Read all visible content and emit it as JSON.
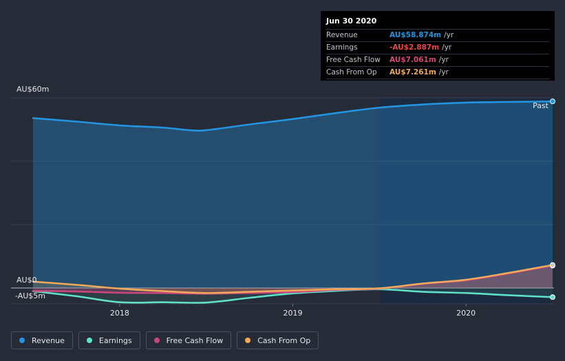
{
  "tooltip": {
    "date": "Jun 30 2020",
    "rows": [
      {
        "label": "Revenue",
        "value": "AU$58.874m",
        "unit": "/yr",
        "color": "#2394df"
      },
      {
        "label": "Earnings",
        "value": "-AU$2.887m",
        "unit": "/yr",
        "color": "#e64848"
      },
      {
        "label": "Free Cash Flow",
        "value": "AU$7.061m",
        "unit": "/yr",
        "color": "#d6477d"
      },
      {
        "label": "Cash From Op",
        "value": "AU$7.261m",
        "unit": "/yr",
        "color": "#f0a95b"
      }
    ]
  },
  "legend": [
    {
      "label": "Revenue",
      "color": "#2394df"
    },
    {
      "label": "Earnings",
      "color": "#5fe0c8"
    },
    {
      "label": "Free Cash Flow",
      "color": "#c9467d"
    },
    {
      "label": "Cash From Op",
      "color": "#f0a95b"
    }
  ],
  "chart_data": {
    "type": "line",
    "title": "",
    "y_unit_labels": {
      "top": "AU$60m",
      "zero": "AU$0",
      "bottom": "-AU$5m"
    },
    "ylim": [
      -5,
      60
    ],
    "xlim": [
      2017.5,
      2020.5
    ],
    "x_ticks": [
      2018,
      2019,
      2020
    ],
    "x_tick_labels": [
      "2018",
      "2019",
      "2020"
    ],
    "past_label": "Past",
    "past_start": 2019.5,
    "series": [
      {
        "name": "Revenue",
        "color": "#2394df",
        "x": [
          2017.5,
          2017.75,
          2018.0,
          2018.25,
          2018.4,
          2018.5,
          2018.75,
          2019.0,
          2019.25,
          2019.5,
          2019.75,
          2020.0,
          2020.25,
          2020.5
        ],
        "values": [
          53.6,
          52.5,
          51.3,
          50.6,
          49.8,
          49.8,
          51.6,
          53.3,
          55.2,
          56.9,
          57.9,
          58.5,
          58.7,
          58.874
        ]
      },
      {
        "name": "Earnings",
        "color": "#5fe0c8",
        "x": [
          2017.5,
          2017.75,
          2018.0,
          2018.25,
          2018.5,
          2018.75,
          2019.0,
          2019.25,
          2019.5,
          2019.75,
          2020.0,
          2020.25,
          2020.5
        ],
        "values": [
          -1.0,
          -2.6,
          -4.5,
          -4.5,
          -4.6,
          -3.1,
          -1.7,
          -0.9,
          -0.4,
          -1.2,
          -1.6,
          -2.3,
          -2.887
        ]
      },
      {
        "name": "Free Cash Flow",
        "color": "#c9467d",
        "x": [
          2017.5,
          2017.75,
          2018.0,
          2018.25,
          2018.5,
          2018.75,
          2019.0,
          2019.25,
          2019.5,
          2019.75,
          2020.0,
          2020.25,
          2020.5
        ],
        "values": [
          -0.9,
          -1.1,
          -1.5,
          -1.6,
          -1.8,
          -1.6,
          -1.3,
          -0.6,
          -0.2,
          1.3,
          2.4,
          4.6,
          7.061
        ]
      },
      {
        "name": "Cash From Op",
        "color": "#f0a95b",
        "x": [
          2017.5,
          2017.75,
          2018.0,
          2018.25,
          2018.5,
          2018.75,
          2019.0,
          2019.25,
          2019.5,
          2019.75,
          2020.0,
          2020.25,
          2020.5
        ],
        "values": [
          2.0,
          1.0,
          -0.2,
          -1.0,
          -1.6,
          -1.2,
          -0.8,
          -0.4,
          -0.1,
          1.4,
          2.6,
          4.8,
          7.261
        ]
      }
    ]
  }
}
